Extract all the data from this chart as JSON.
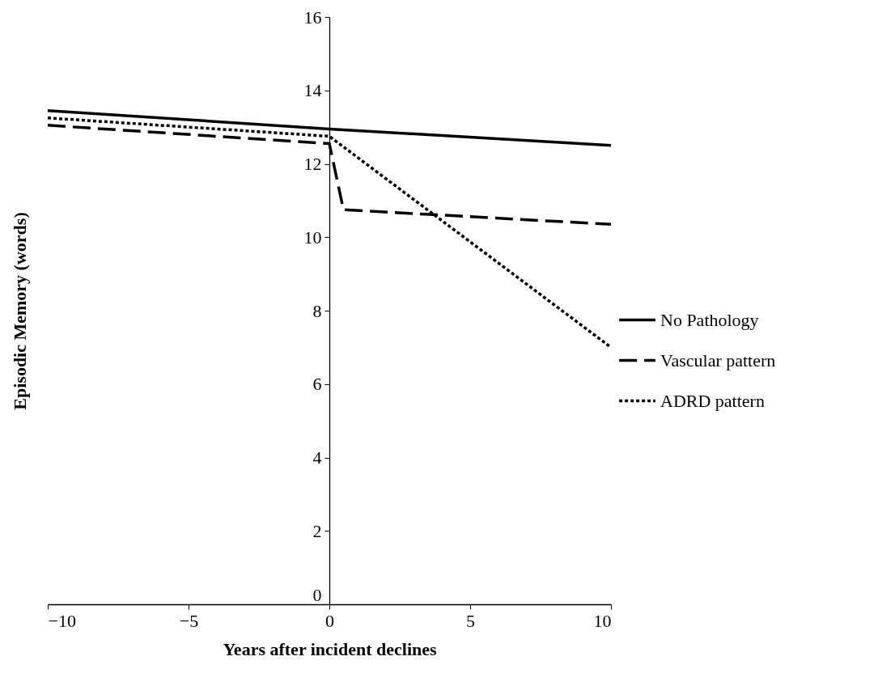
{
  "chart_data": {
    "type": "line",
    "xlabel": "Years after incident declines",
    "ylabel": "Episodic Memory (words)",
    "xlim": [
      -10,
      10
    ],
    "xticks": [
      -10,
      -5,
      0,
      5,
      10
    ],
    "ylim": [
      0,
      16
    ],
    "yticks": [
      0,
      2,
      4,
      6,
      8,
      10,
      12,
      14,
      16
    ],
    "grid": false,
    "legend": "right",
    "series": [
      {
        "name": "No Pathology",
        "color": "#000000",
        "line_style": "solid",
        "x": [
          -10,
          0,
          10
        ],
        "values": [
          13.45,
          12.95,
          12.5
        ]
      },
      {
        "name": "Vascular pattern",
        "color": "#000000",
        "line_style": "dashed",
        "x": [
          -10,
          0,
          0.5,
          10
        ],
        "values": [
          13.05,
          12.55,
          10.75,
          10.35
        ]
      },
      {
        "name": "ADRD pattern",
        "color": "#000000",
        "line_style": "dotted",
        "x": [
          -10,
          0,
          10
        ],
        "values": [
          13.25,
          12.75,
          7
        ]
      }
    ]
  }
}
